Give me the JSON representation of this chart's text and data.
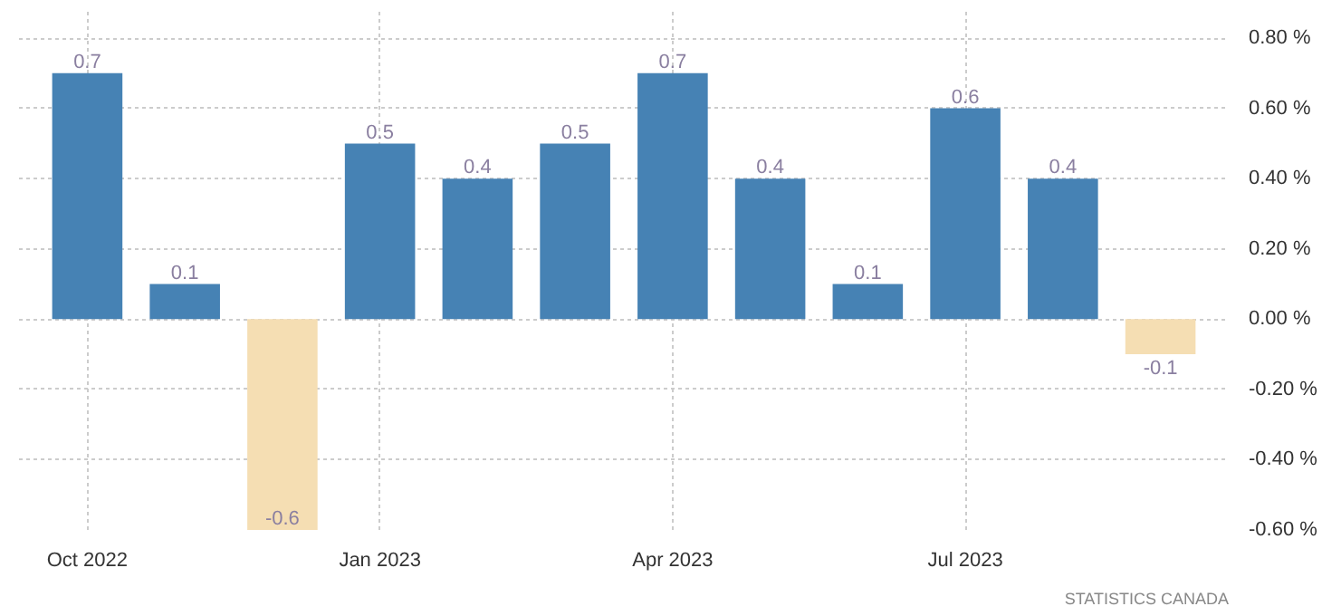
{
  "chart_data": {
    "type": "bar",
    "categories": [
      "Oct 2022",
      null,
      null,
      "Jan 2023",
      null,
      null,
      "Apr 2023",
      null,
      null,
      "Jul 2023",
      null,
      null
    ],
    "values": [
      0.7,
      0.1,
      -0.6,
      0.5,
      0.4,
      0.5,
      0.7,
      0.4,
      0.1,
      0.6,
      0.4,
      -0.1
    ],
    "colors": [
      "#4682b4",
      "#4682b4",
      "#f5deb3",
      "#4682b4",
      "#4682b4",
      "#4682b4",
      "#4682b4",
      "#4682b4",
      "#4682b4",
      "#4682b4",
      "#4682b4",
      "#f5deb3"
    ],
    "ylim": [
      -0.6,
      0.88
    ],
    "yticks": [
      {
        "value": -0.6,
        "label": "-0.60 %"
      },
      {
        "value": -0.4,
        "label": "-0.40 %"
      },
      {
        "value": -0.2,
        "label": "-0.20 %"
      },
      {
        "value": 0,
        "label": "0.00 %"
      },
      {
        "value": 0.2,
        "label": "0.20 %"
      },
      {
        "value": 0.4,
        "label": "0.40 %"
      },
      {
        "value": 0.6,
        "label": "0.60 %"
      },
      {
        "value": 0.8,
        "label": "0.80 %"
      }
    ],
    "grid": true,
    "data_labels": true,
    "annotations": [
      "STATISTICS CANADA"
    ]
  }
}
